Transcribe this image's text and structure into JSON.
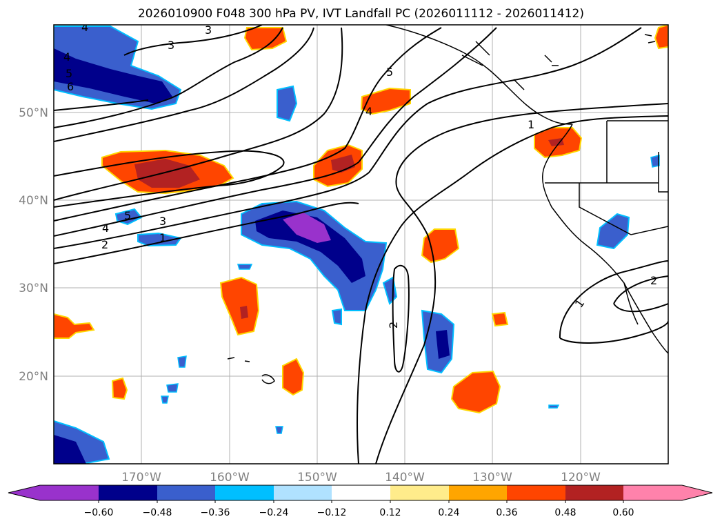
{
  "title": "2026010900 F048 300 hPa PV, IVT Landfall PC (2026011112 - 2026011412)",
  "map": {
    "lon_labels": [
      "170°W",
      "160°W",
      "150°W",
      "140°W",
      "130°W",
      "120°W"
    ],
    "lat_labels": [
      "50°N",
      "40°N",
      "30°N",
      "20°N"
    ],
    "contour_labels": [
      "4",
      "4",
      "5",
      "6",
      "3",
      "3",
      "5",
      "4",
      "1",
      "5",
      "4",
      "3",
      "2",
      "1",
      "2",
      "1",
      "2"
    ]
  },
  "colorbar": {
    "ticks": [
      "−0.60",
      "−0.48",
      "−0.36",
      "−0.24",
      "−0.12",
      "0.12",
      "0.24",
      "0.36",
      "0.48",
      "0.60"
    ],
    "colors": [
      "#9932cc",
      "#00008b",
      "#3a5fcd",
      "#00bfff",
      "#b0e2ff",
      "#ffffff",
      "#ffec8b",
      "#ffa500",
      "#ff4500",
      "#b22222",
      "#ff82ab"
    ]
  }
}
